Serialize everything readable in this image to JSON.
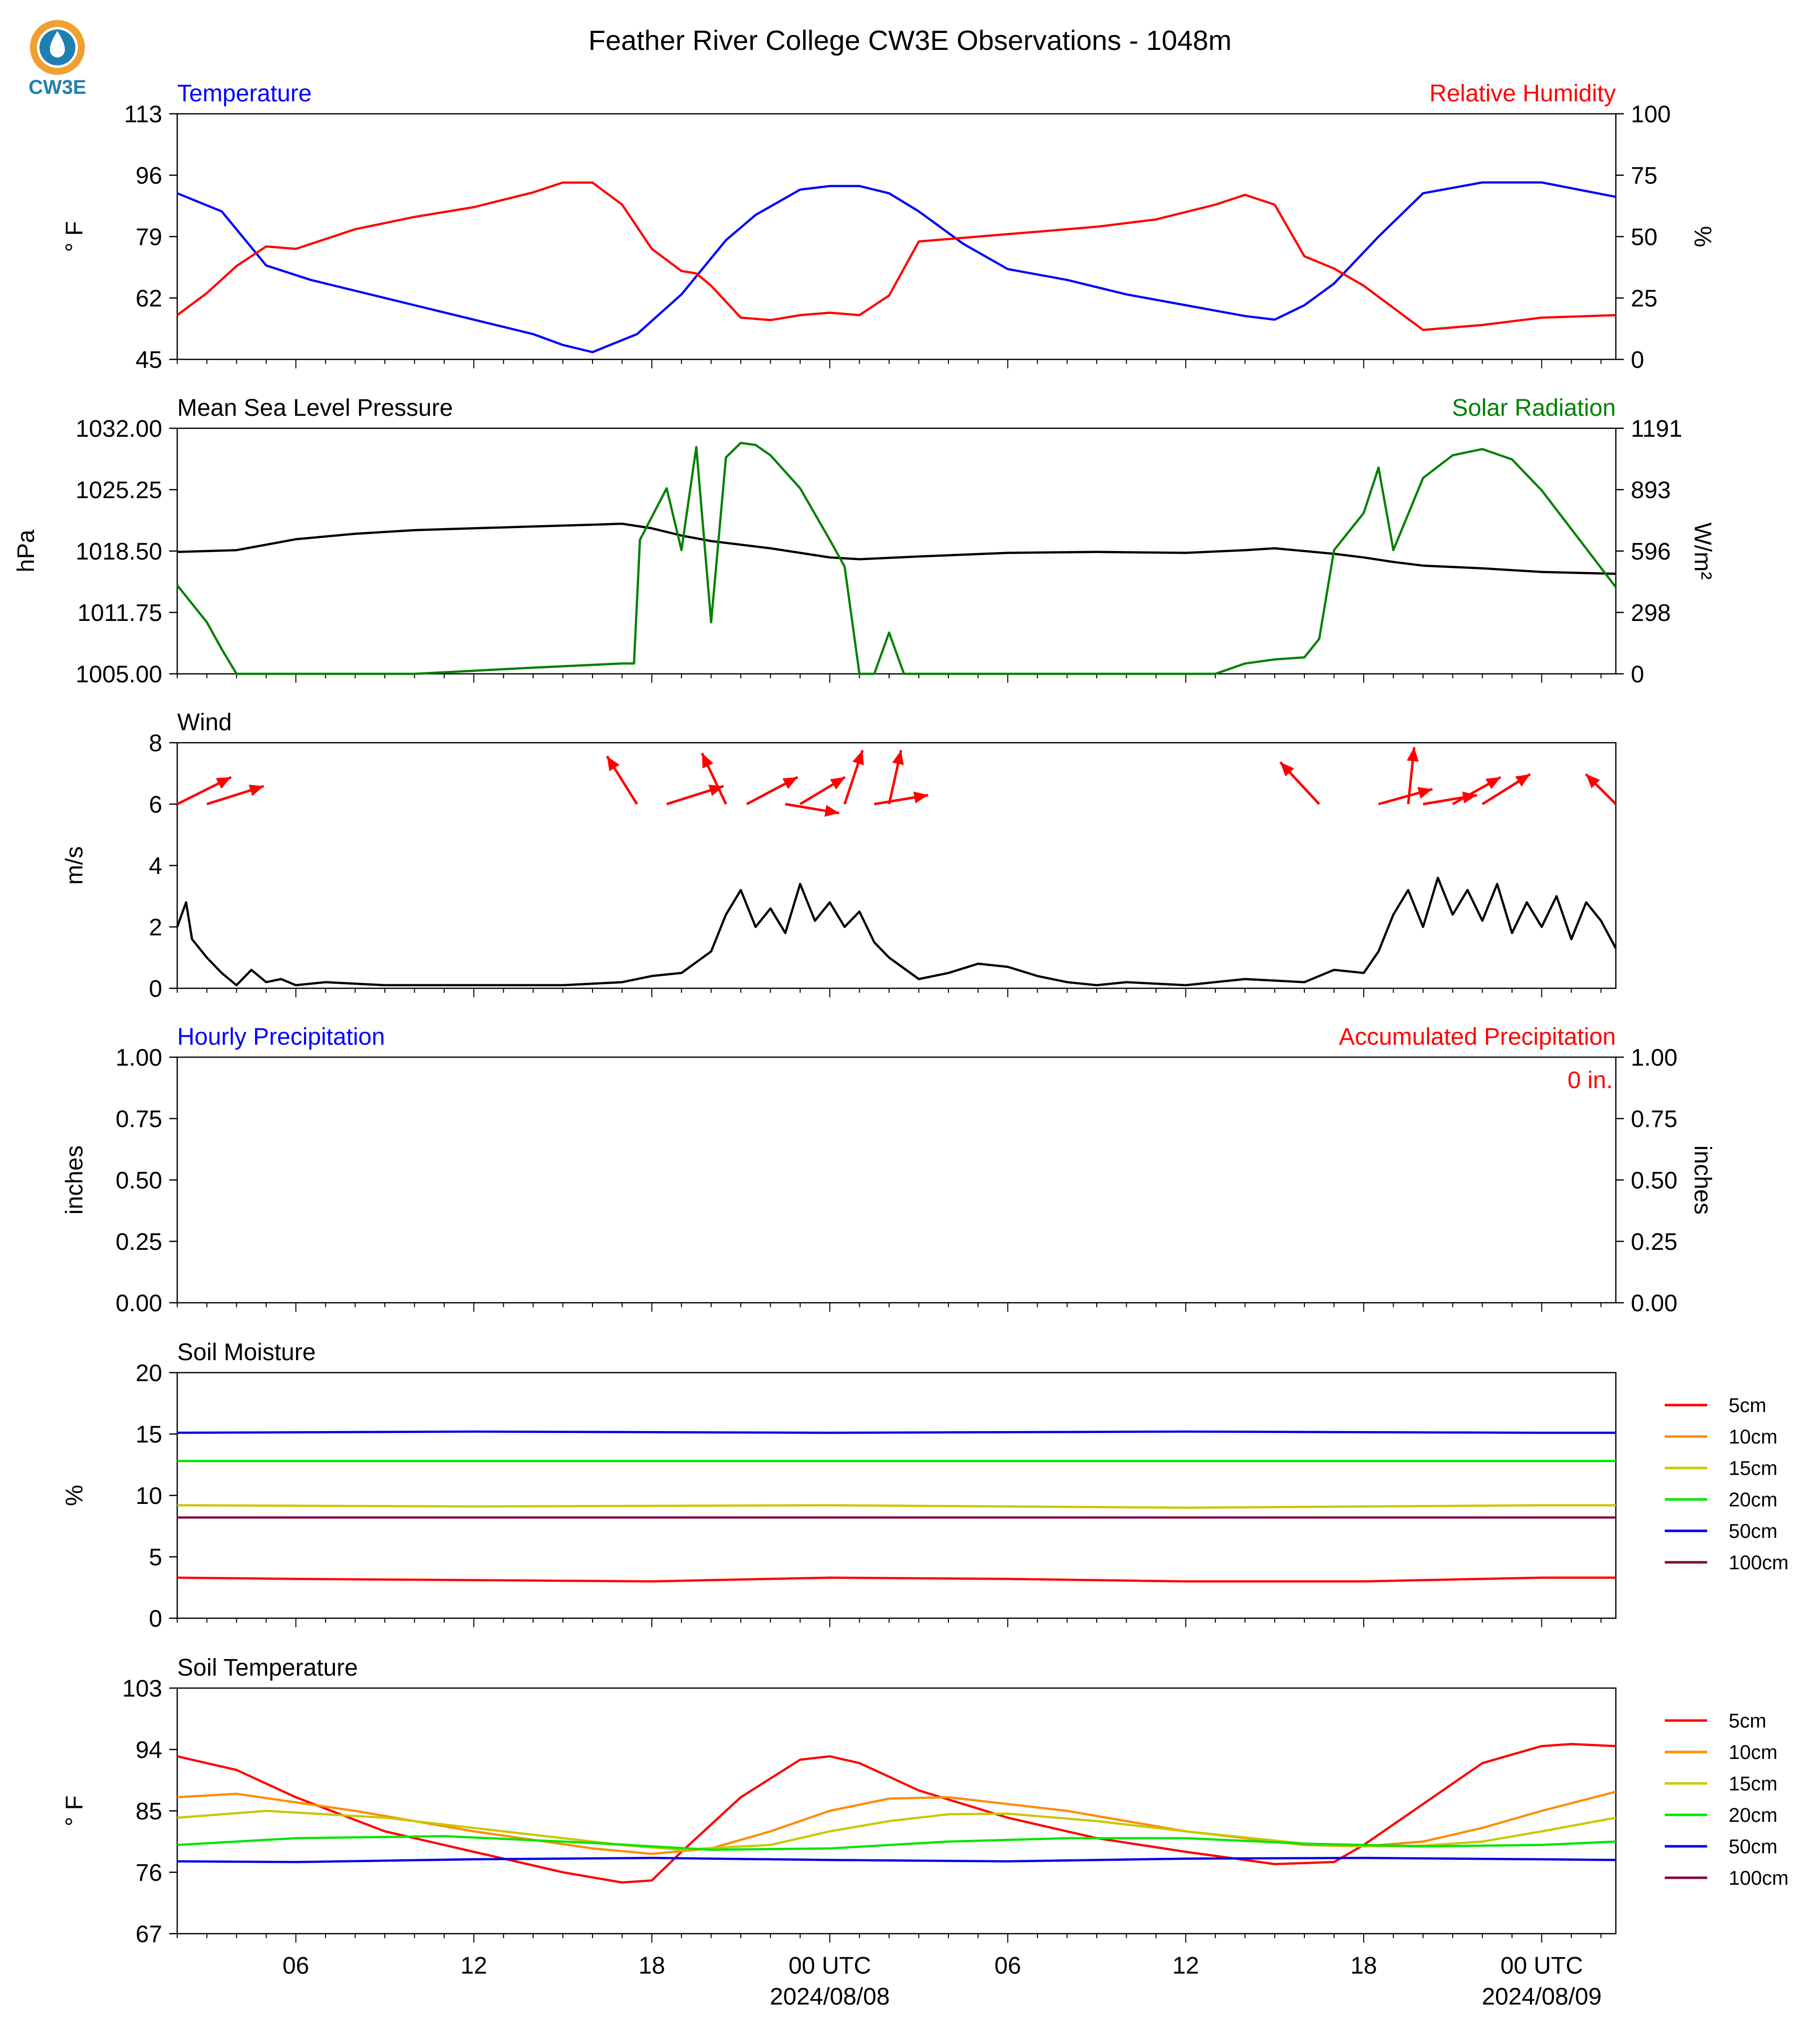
{
  "logo": {
    "text": "CW3E",
    "colors": {
      "ring": "#f0a030",
      "drop": "#1f7fb0",
      "text": "#1f7fb0"
    }
  },
  "title": "Feather River College CW3E Observations - 1048m",
  "colors": {
    "temperature": "#0000ff",
    "humidity": "#ff0000",
    "pressure": "#000000",
    "solar": "#008000",
    "wind": "#000000",
    "arrows": "#ff0000",
    "accum": "#ff0000"
  },
  "time_axis": {
    "range_hours": [
      -22,
      26.5
    ],
    "tick_labels": [
      {
        "h": -18,
        "label": "06"
      },
      {
        "h": -12,
        "label": "12"
      },
      {
        "h": -6,
        "label": "18"
      },
      {
        "h": 0,
        "label": "00 UTC",
        "date": "2024/08/08"
      },
      {
        "h": 6,
        "label": "06"
      },
      {
        "h": 12,
        "label": "12"
      },
      {
        "h": 18,
        "label": "18"
      },
      {
        "h": 24,
        "label": "00 UTC",
        "date": "2024/08/09"
      }
    ]
  },
  "legend_soil_moisture": [
    {
      "label": "5cm",
      "color": "#ff0000"
    },
    {
      "label": "10cm",
      "color": "#ff8c00"
    },
    {
      "label": "15cm",
      "color": "#c8c800"
    },
    {
      "label": "20cm",
      "color": "#00e600"
    },
    {
      "label": "50cm",
      "color": "#0000e6"
    },
    {
      "label": "100cm",
      "color": "#800040"
    }
  ],
  "legend_soil_temperature": [
    {
      "label": "5cm",
      "color": "#ff0000"
    },
    {
      "label": "10cm",
      "color": "#ff8c00"
    },
    {
      "label": "15cm",
      "color": "#c8c800"
    },
    {
      "label": "20cm",
      "color": "#00e600"
    },
    {
      "label": "50cm",
      "color": "#0000e6"
    },
    {
      "label": "100cm",
      "color": "#800040"
    }
  ],
  "chart_data": [
    {
      "type": "line",
      "title_left": "Temperature",
      "title_right": "Relative Humidity",
      "ylabel_left": "° F",
      "ylabel_right": "%",
      "ylim_left": [
        45,
        113
      ],
      "ylim_right": [
        0,
        100
      ],
      "yticks_left": [
        "45",
        "62",
        "79",
        "96",
        "113"
      ],
      "yticks_right": [
        "0",
        "25",
        "50",
        "75",
        "100"
      ],
      "series": [
        {
          "axis": "left",
          "key": "temperature",
          "x": [
            -22,
            -20.5,
            -19,
            -17.5,
            -16,
            -14,
            -12,
            -10,
            -9,
            -8,
            -6.5,
            -5,
            -3.5,
            -2.5,
            -1,
            0,
            1,
            2,
            3,
            4.5,
            6,
            8,
            10,
            12,
            14,
            15,
            16,
            17,
            18.5,
            20,
            22,
            24,
            26.5
          ],
          "values": [
            91,
            86,
            71,
            67,
            64,
            60,
            56,
            52,
            49,
            47,
            52,
            63,
            78,
            85,
            92,
            93,
            93,
            91,
            86,
            77,
            70,
            67,
            63,
            60,
            57,
            56,
            60,
            66,
            79,
            91,
            94,
            94,
            90
          ]
        },
        {
          "axis": "right",
          "key": "humidity",
          "x": [
            -22,
            -21,
            -20,
            -19,
            -18,
            -16,
            -14,
            -12,
            -10,
            -9,
            -8,
            -7,
            -6,
            -5,
            -4.5,
            -4,
            -3,
            -2,
            -1,
            0,
            1,
            2,
            3,
            5,
            7,
            9,
            11,
            13,
            14,
            15,
            16,
            17,
            18,
            20,
            22,
            24,
            26.5
          ],
          "values": [
            18,
            27,
            38,
            46,
            45,
            53,
            58,
            62,
            68,
            72,
            72,
            63,
            45,
            36,
            35,
            30,
            17,
            16,
            18,
            19,
            18,
            26,
            48,
            50,
            52,
            54,
            57,
            63,
            67,
            63,
            42,
            37,
            30,
            12,
            14,
            17,
            18
          ]
        }
      ]
    },
    {
      "type": "line",
      "title_left": "Mean Sea Level Pressure",
      "title_right": "Solar Radiation",
      "ylabel_left": "hPa",
      "ylabel_right": "W/m²",
      "ylim_left": [
        1005,
        1032
      ],
      "ylim_right": [
        0,
        1191
      ],
      "yticks_left": [
        "1005.00",
        "1011.75",
        "1018.50",
        "1025.25",
        "1032.00"
      ],
      "yticks_right": [
        "0",
        "298",
        "596",
        "893",
        "1191"
      ],
      "series": [
        {
          "axis": "left",
          "key": "pressure",
          "x": [
            -22,
            -20,
            -18,
            -16,
            -14,
            -12,
            -10,
            -8,
            -7,
            -6,
            -5,
            -4,
            -2,
            0,
            1,
            3,
            6,
            9,
            12,
            14,
            15,
            16,
            17,
            18,
            19,
            20,
            22,
            24,
            26.5
          ],
          "values": [
            1018.4,
            1018.6,
            1019.8,
            1020.4,
            1020.8,
            1021.0,
            1021.2,
            1021.4,
            1021.5,
            1021.0,
            1020.2,
            1019.6,
            1018.8,
            1017.8,
            1017.6,
            1017.9,
            1018.3,
            1018.4,
            1018.3,
            1018.6,
            1018.8,
            1018.5,
            1018.2,
            1017.8,
            1017.3,
            1016.9,
            1016.6,
            1016.2,
            1016.0
          ]
        },
        {
          "axis": "right",
          "key": "solar",
          "x": [
            -22,
            -21,
            -20.5,
            -20,
            -15,
            -14,
            -10,
            -7,
            -6.6,
            -6.4,
            -5.5,
            -5,
            -4.5,
            -4,
            -3.5,
            -3,
            -2.5,
            -2,
            -1,
            0,
            0.5,
            1,
            1.5,
            2,
            2.5,
            3,
            5,
            8,
            11,
            13,
            14,
            15,
            16,
            16.5,
            17,
            18,
            18.5,
            19,
            20,
            21,
            22,
            23,
            24,
            26.5
          ],
          "values": [
            430,
            250,
            120,
            0,
            0,
            0,
            30,
            50,
            50,
            650,
            900,
            600,
            1100,
            250,
            1050,
            1120,
            1110,
            1060,
            900,
            650,
            520,
            0,
            0,
            200,
            0,
            0,
            0,
            0,
            0,
            0,
            50,
            70,
            80,
            170,
            600,
            780,
            1000,
            600,
            950,
            1060,
            1090,
            1040,
            890,
            420
          ]
        }
      ]
    },
    {
      "type": "line",
      "title_left": "Wind",
      "ylabel_left": "m/s",
      "ylim_left": [
        0,
        8
      ],
      "yticks_left": [
        "0",
        "2",
        "4",
        "6",
        "8"
      ],
      "series": [
        {
          "axis": "left",
          "key": "wind",
          "x": [
            -22,
            -21.7,
            -21.5,
            -21,
            -20.5,
            -20,
            -19.5,
            -19,
            -18.5,
            -18,
            -17,
            -15,
            -12,
            -9,
            -7,
            -6,
            -5,
            -4,
            -3.5,
            -3,
            -2.5,
            -2,
            -1.5,
            -1,
            -0.5,
            0,
            0.5,
            1,
            1.5,
            2,
            3,
            4,
            5,
            6,
            7,
            8,
            9,
            10,
            12,
            14,
            16,
            17,
            18,
            18.5,
            19,
            19.5,
            20,
            20.5,
            21,
            21.5,
            22,
            22.5,
            23,
            23.5,
            24,
            24.5,
            25,
            25.5,
            26,
            26.5
          ],
          "values": [
            2,
            2.8,
            1.6,
            1.0,
            0.5,
            0.1,
            0.6,
            0.2,
            0.3,
            0.1,
            0.2,
            0.1,
            0.1,
            0.1,
            0.2,
            0.4,
            0.5,
            1.2,
            2.4,
            3.2,
            2.0,
            2.6,
            1.8,
            3.4,
            2.2,
            2.8,
            2.0,
            2.5,
            1.5,
            1.0,
            0.3,
            0.5,
            0.8,
            0.7,
            0.4,
            0.2,
            0.1,
            0.2,
            0.1,
            0.3,
            0.2,
            0.6,
            0.5,
            1.2,
            2.4,
            3.2,
            2.0,
            3.6,
            2.4,
            3.2,
            2.2,
            3.4,
            1.8,
            2.8,
            2.0,
            3.0,
            1.6,
            2.8,
            2.2,
            1.3
          ]
        }
      ],
      "arrows": [
        {
          "h": -22,
          "u": 1.8,
          "v": 0.9
        },
        {
          "h": -21,
          "u": 1.9,
          "v": 0.6
        },
        {
          "h": -6.5,
          "u": -1.0,
          "v": 1.6
        },
        {
          "h": -5.5,
          "u": 1.9,
          "v": 0.6
        },
        {
          "h": -3.5,
          "u": -0.8,
          "v": 1.7
        },
        {
          "h": -2.8,
          "u": 1.7,
          "v": 0.9
        },
        {
          "h": -1.5,
          "u": 1.8,
          "v": -0.3
        },
        {
          "h": -1,
          "u": 1.5,
          "v": 0.9
        },
        {
          "h": 0.5,
          "u": 0.6,
          "v": 1.8
        },
        {
          "h": 1.5,
          "u": 1.8,
          "v": 0.3
        },
        {
          "h": 2,
          "u": 0.4,
          "v": 1.8
        },
        {
          "h": 16.5,
          "u": -1.3,
          "v": 1.4
        },
        {
          "h": 18.5,
          "u": 1.8,
          "v": 0.5
        },
        {
          "h": 19.5,
          "u": 0.2,
          "v": 1.9
        },
        {
          "h": 20,
          "u": 1.8,
          "v": 0.3
        },
        {
          "h": 21,
          "u": 1.6,
          "v": 0.9
        },
        {
          "h": 22,
          "u": 1.6,
          "v": 1.0
        },
        {
          "h": 26.5,
          "u": -1.0,
          "v": 1.0
        }
      ]
    },
    {
      "type": "line",
      "title_left": "Hourly Precipitation",
      "title_right": "Accumulated Precipitation",
      "ylabel_left": "inches",
      "ylabel_right": "inches",
      "ylim_left": [
        0,
        1
      ],
      "ylim_right": [
        0,
        1
      ],
      "yticks_left": [
        "0.00",
        "0.25",
        "0.50",
        "0.75",
        "1.00"
      ],
      "yticks_right": [
        "0.00",
        "0.25",
        "0.50",
        "0.75",
        "1.00"
      ],
      "annotation": "0 in.",
      "series": [
        {
          "axis": "left",
          "key": "precip",
          "x": [
            -22,
            26.5
          ],
          "values": [
            0,
            0
          ]
        }
      ]
    },
    {
      "type": "line",
      "title_left": "Soil Moisture",
      "ylabel_left": "%",
      "ylim_left": [
        0,
        20
      ],
      "yticks_left": [
        "0",
        "5",
        "10",
        "15",
        "20"
      ],
      "series": [
        {
          "name": "5cm",
          "x": [
            -22,
            -18,
            -12,
            -6,
            0,
            6,
            12,
            18,
            24,
            26.5
          ],
          "values": [
            3.3,
            3.2,
            3.1,
            3.0,
            3.3,
            3.2,
            3.0,
            3.0,
            3.3,
            3.3
          ]
        },
        {
          "name": "10cm",
          "x": [
            -22,
            26.5
          ],
          "values": [
            8.2,
            8.2
          ]
        },
        {
          "name": "15cm",
          "x": [
            -22,
            -12,
            0,
            12,
            24,
            26.5
          ],
          "values": [
            9.2,
            9.1,
            9.2,
            9.0,
            9.2,
            9.2
          ]
        },
        {
          "name": "20cm",
          "x": [
            -22,
            -12,
            0,
            12,
            24,
            26.5
          ],
          "values": [
            12.8,
            12.8,
            12.8,
            12.8,
            12.8,
            12.8
          ]
        },
        {
          "name": "50cm",
          "x": [
            -22,
            -12,
            0,
            12,
            24,
            26.5
          ],
          "values": [
            15.1,
            15.2,
            15.1,
            15.2,
            15.1,
            15.1
          ]
        },
        {
          "name": "100cm",
          "x": [
            -22,
            26.5
          ],
          "values": [
            8.2,
            8.2
          ]
        }
      ]
    },
    {
      "type": "line",
      "title_left": "Soil Temperature",
      "ylabel_left": "° F",
      "ylim_left": [
        67,
        103
      ],
      "yticks_left": [
        "67",
        "76",
        "85",
        "94",
        "103"
      ],
      "series": [
        {
          "name": "5cm",
          "x": [
            -22,
            -20,
            -18,
            -15,
            -12,
            -9,
            -7,
            -6,
            -5,
            -3,
            -1,
            0,
            1,
            3,
            6,
            9,
            12,
            15,
            17,
            18,
            20,
            22,
            24,
            25,
            26.5
          ],
          "values": [
            93,
            91,
            87,
            82,
            79,
            76,
            74.5,
            74.8,
            79,
            87,
            92.5,
            93,
            92,
            88,
            84,
            81,
            79,
            77.2,
            77.5,
            80,
            86,
            92,
            94.5,
            94.8,
            94.5
          ]
        },
        {
          "name": "10cm",
          "x": [
            -22,
            -20,
            -16,
            -12,
            -8,
            -6,
            -4,
            -2,
            0,
            2,
            4,
            8,
            12,
            16,
            18,
            20,
            22,
            24,
            26.5
          ],
          "values": [
            87,
            87.5,
            85,
            82,
            79.5,
            78.7,
            79.5,
            82,
            85,
            86.8,
            87,
            85,
            82,
            80,
            79.8,
            80.5,
            82.5,
            85,
            87.8
          ]
        },
        {
          "name": "15cm",
          "x": [
            -22,
            -19,
            -15,
            -11,
            -7,
            -5,
            -2,
            0,
            2,
            4,
            6,
            9,
            12,
            16,
            18,
            20,
            22,
            24,
            26.5
          ],
          "values": [
            84,
            85,
            84,
            82,
            80,
            79.3,
            80,
            82,
            83.5,
            84.5,
            84.6,
            83.5,
            82,
            80.2,
            79.8,
            79.9,
            80.5,
            82,
            84
          ]
        },
        {
          "name": "20cm",
          "x": [
            -22,
            -18,
            -13,
            -8,
            -4,
            0,
            4,
            8,
            12,
            16,
            20,
            24,
            26.5
          ],
          "values": [
            80,
            81,
            81.3,
            80.3,
            79.3,
            79.5,
            80.5,
            81,
            81,
            80.2,
            79.8,
            80,
            80.5
          ]
        },
        {
          "name": "50cm",
          "x": [
            -22,
            -18,
            -12,
            -6,
            0,
            6,
            12,
            18,
            24,
            26.5
          ],
          "values": [
            77.6,
            77.5,
            77.9,
            78.1,
            77.8,
            77.6,
            78.0,
            78.1,
            77.9,
            77.8
          ]
        },
        {
          "name": "100cm",
          "x": [],
          "values": []
        }
      ]
    }
  ]
}
